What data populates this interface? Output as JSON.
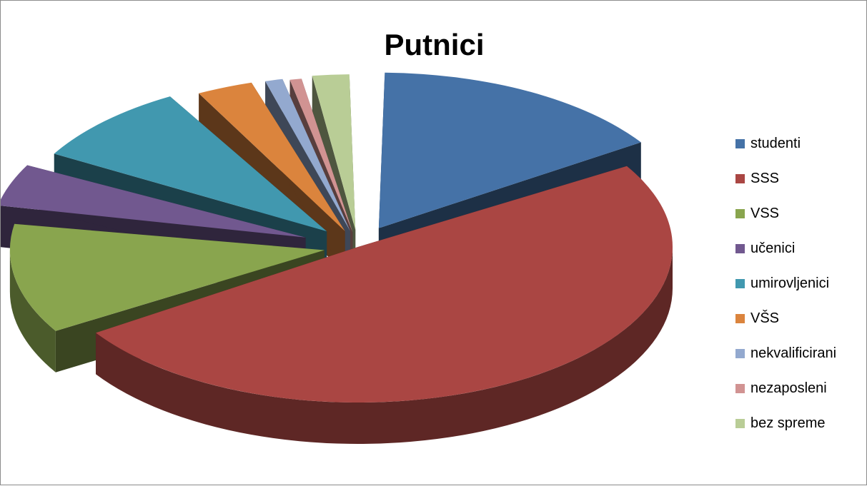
{
  "chart_data": {
    "type": "pie",
    "title": "Putnici",
    "categories": [
      "studenti",
      "SSS",
      "VSS",
      "učenici",
      "umirovljenici",
      "VŠS",
      "nekvalificirani",
      "nezaposleni",
      "bez spreme"
    ],
    "values": [
      16,
      50,
      12,
      5,
      9,
      3.5,
      1.2,
      0.8,
      2.5
    ],
    "colors": [
      "#4572a7",
      "#aa4643",
      "#89a54e",
      "#71588f",
      "#4198af",
      "#db843d",
      "#93a9cf",
      "#d19392",
      "#b9cd96"
    ],
    "style": "3d-exploded",
    "legend": "right"
  }
}
